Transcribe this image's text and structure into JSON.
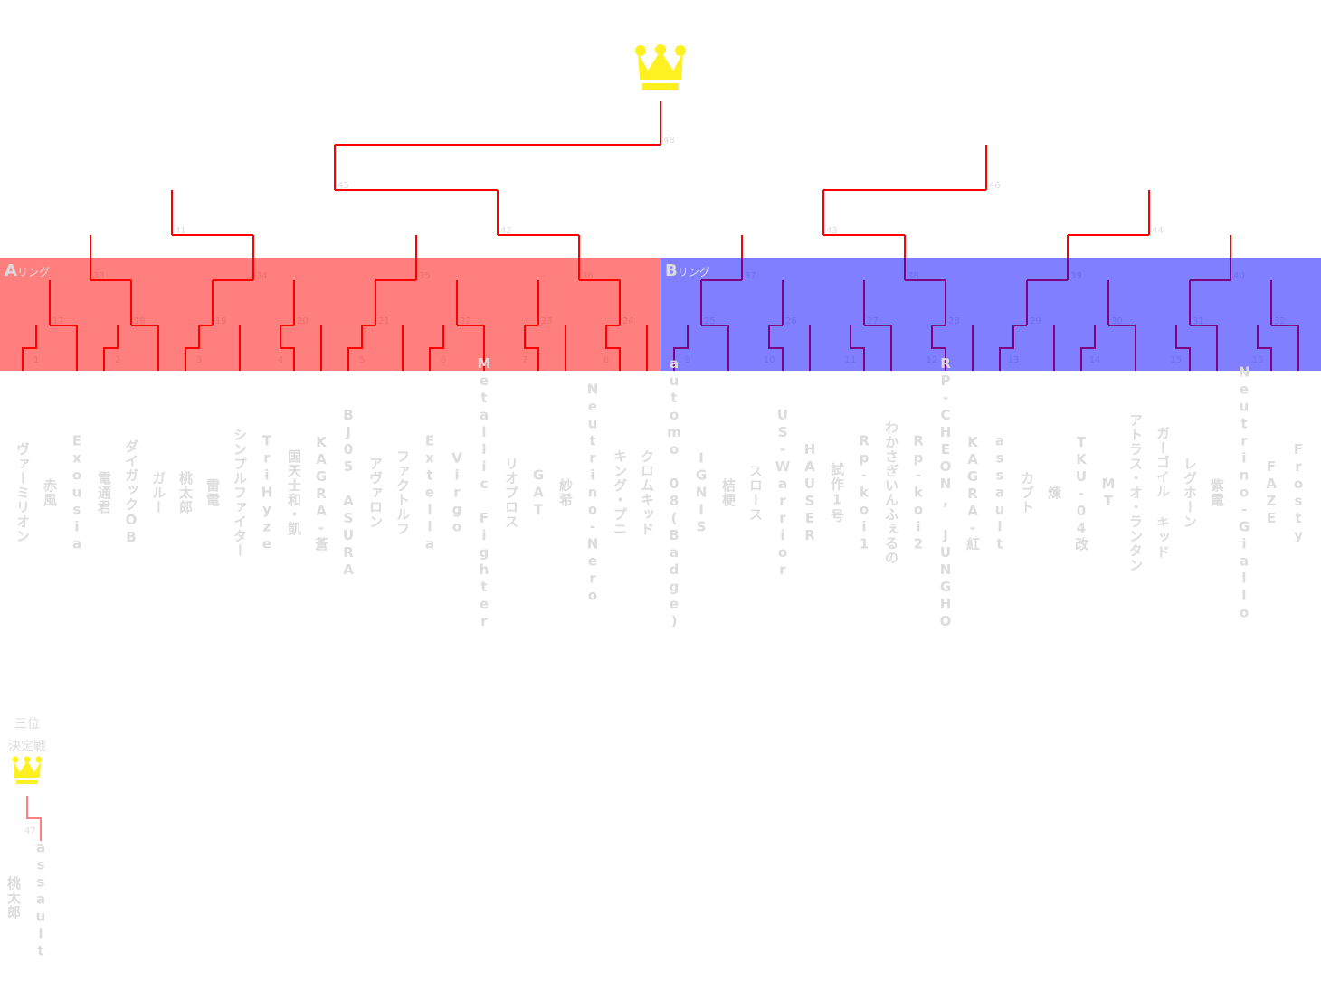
{
  "colors": {
    "line": "#ff0000",
    "ring_a": "#ff0000",
    "ring_b": "#0000ff",
    "crown": "#fff022",
    "text": "#dcdcdc",
    "third_line": "#ff8080"
  },
  "icons": {
    "champion": "crown-icon",
    "third_place": "crown-icon"
  },
  "rings": [
    {
      "letter": "A",
      "suffix": "リング"
    },
    {
      "letter": "B",
      "suffix": "リング"
    }
  ],
  "players": [
    "ヴァーミリオン",
    "赤風",
    "Exousia",
    "電通君",
    "ダイガックOB",
    "ガルー",
    "桃太郎",
    "雷電",
    "シンプルファイター",
    "TriHyze",
    "国天士和・凱",
    "KAGRA-蒼",
    "BJ05 ASURA",
    "アヴァロン",
    "ファクトルフ",
    "Extella",
    "Virgo",
    "Metallic Fighter",
    "リオプロス",
    "GAT",
    "紗希",
    "Neutrino-Nero",
    "キング・プニ",
    "クロムキッド",
    "automo 08(Badge)",
    "IGNIS",
    "桔梗",
    "スロース",
    "US-Warrior",
    "HAUSER",
    "試作1号",
    "Rp-koi1",
    "わかさぎいんふぇるの",
    "Rp-koi2",
    "RP-CHEON, JUNGHO",
    "KAGRA-紅",
    "assault",
    "カブト",
    "煉",
    "TKU-04改",
    "MT",
    "アトラス・オ・ランタン",
    "ガーゴイル キッド",
    "レグホーン",
    "紫電",
    "Neutrino-Giallo",
    "FAZE",
    "Frosty"
  ],
  "matches": [
    "1",
    "2",
    "3",
    "4",
    "5",
    "6",
    "7",
    "8",
    "9",
    "10",
    "11",
    "12",
    "13",
    "14",
    "15",
    "16",
    "17",
    "18",
    "19",
    "20",
    "21",
    "22",
    "23",
    "24",
    "25",
    "26",
    "27",
    "28",
    "29",
    "30",
    "31",
    "32",
    "33",
    "34",
    "35",
    "36",
    "37",
    "38",
    "39",
    "40",
    "41",
    "42",
    "43",
    "44",
    "45",
    "46",
    "47",
    "48"
  ],
  "third_place": {
    "title_lines": [
      "三位",
      "決定戦"
    ],
    "match": "47",
    "players": [
      "桃太郎",
      "assault"
    ]
  }
}
